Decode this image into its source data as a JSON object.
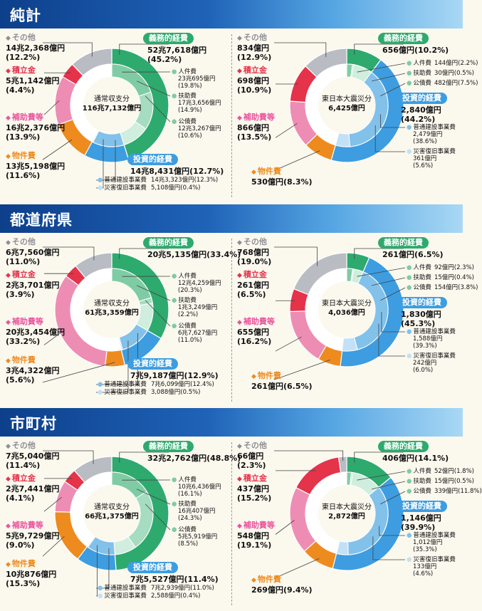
{
  "sections": [
    {
      "title": "純計",
      "panels": [
        {
          "center": [
            "通常収支分",
            "116兆7,132億円"
          ],
          "sono": "その他",
          "sono_v1": "14兆2,368億円",
          "sono_v2": "(12.2%)",
          "seki": "積立金",
          "seki_v1": "5兆1,142億円",
          "seki_v2": "(4.4%)",
          "hojo": "補助費等",
          "hojo_v1": "16兆2,376億円",
          "hojo_v2": "(13.9%)",
          "buk": "物件費",
          "buk_v1": "13兆5,198億円",
          "buk_v2": "(11.6%)",
          "gimu": "義務的経費",
          "gimu_v1": "52兆7,618億円",
          "gimu_v2": "(45.2%)",
          "jin": "人件費",
          "jin_v1": "23兆695億円",
          "jin_v2": "(19.8%)",
          "fuj": "扶助費",
          "fuj_v1": "17兆3,656億円",
          "fuj_v2": "(14.9%)",
          "kou": "公債費",
          "kou_v1": "12兆3,267億円",
          "kou_v2": "(10.6%)",
          "toshi": "投資的経費",
          "toshi_v": "14兆8,431億円(12.7%)",
          "futsu": "普通建設事業費",
          "futsu_v": "14兆3,323億円(12.3%)",
          "sai": "災害復旧事業費",
          "sai_v": "5,108億円(0.4%)"
        },
        {
          "center": [
            "東日本大震災分",
            "6,425億円"
          ],
          "sono": "その他",
          "sono_v1": "834億円",
          "sono_v2": "(12.9%)",
          "seki": "積立金",
          "seki_v1": "698億円",
          "seki_v2": "(10.9%)",
          "hojo": "補助費等",
          "hojo_v1": "866億円",
          "hojo_v2": "(13.5%)",
          "buk": "物件費",
          "buk_v1": "530億円(8.3%)",
          "buk_v2": "",
          "gimu": "義務的経費",
          "gimu_v1": "656億円(10.2%)",
          "gimu_v2": "",
          "jin": "人件費",
          "jin_v1": "144億円(2.2%)",
          "jin_v2": "",
          "fuj": "扶助費",
          "fuj_v1": "30億円(0.5%)",
          "fuj_v2": "",
          "kou": "公債費",
          "kou_v1": "482億円(7.5%)",
          "kou_v2": "",
          "toshi": "投資的経費",
          "toshi_v": "2,840億円",
          "toshi_v2": "(44.2%)",
          "futsu": "普通建設事業費",
          "futsu_v": "2,479億円",
          "futsu_v2": "(38.6%)",
          "sai": "災害復旧事業費",
          "sai_v": "361億円",
          "sai_v2": "(5.6%)"
        }
      ]
    },
    {
      "title": "都道府県",
      "panels": [
        {
          "center": [
            "通常収支分",
            "61兆3,359億円"
          ],
          "sono": "その他",
          "sono_v1": "6兆7,560億円",
          "sono_v2": "(11.0%)",
          "seki": "積立金",
          "seki_v1": "2兆3,701億円",
          "seki_v2": "(3.9%)",
          "hojo": "補助費等",
          "hojo_v1": "20兆3,454億円",
          "hojo_v2": "(33.2%)",
          "buk": "物件費",
          "buk_v1": "3兆4,322億円",
          "buk_v2": "(5.6%)",
          "gimu": "義務的経費",
          "gimu_v1": "20兆5,135億円(33.4%)",
          "gimu_v2": "",
          "jin": "人件費",
          "jin_v1": "12兆4,259億円",
          "jin_v2": "(20.3%)",
          "fuj": "扶助費",
          "fuj_v1": "1兆3,249億円",
          "fuj_v2": "(2.2%)",
          "kou": "公債費",
          "kou_v1": "6兆7,627億円",
          "kou_v2": "(11.0%)",
          "toshi": "投資的経費",
          "toshi_v": "7兆9,187億円(12.9%)",
          "futsu": "普通建設事業費",
          "futsu_v": "7兆6,099億円(12.4%)",
          "sai": "災害復旧事業費",
          "sai_v": "3,088億円(0.5%)"
        },
        {
          "center": [
            "東日本大震災分",
            "4,036億円"
          ],
          "sono": "その他",
          "sono_v1": "768億円",
          "sono_v2": "(19.0%)",
          "seki": "積立金",
          "seki_v1": "261億円",
          "seki_v2": "(6.5%)",
          "hojo": "補助費等",
          "hojo_v1": "655億円",
          "hojo_v2": "(16.2%)",
          "buk": "物件費",
          "buk_v1": "261億円(6.5%)",
          "buk_v2": "",
          "gimu": "義務的経費",
          "gimu_v1": "261億円(6.5%)",
          "gimu_v2": "",
          "jin": "人件費",
          "jin_v1": "92億円(2.3%)",
          "jin_v2": "",
          "fuj": "扶助費",
          "fuj_v1": "15億円(0.4%)",
          "fuj_v2": "",
          "kou": "公債費",
          "kou_v1": "154億円(3.8%)",
          "kou_v2": "",
          "toshi": "投資的経費",
          "toshi_v": "1,830億円",
          "toshi_v2": "(45.3%)",
          "futsu": "普通建設事業費",
          "futsu_v": "1,588億円",
          "futsu_v2": "(39.3%)",
          "sai": "災害復旧事業費",
          "sai_v": "242億円",
          "sai_v2": "(6.0%)"
        }
      ]
    },
    {
      "title": "市町村",
      "panels": [
        {
          "center": [
            "通常収支分",
            "66兆1,375億円"
          ],
          "sono": "その他",
          "sono_v1": "7兆5,040億円",
          "sono_v2": "(11.4%)",
          "seki": "積立金",
          "seki_v1": "2兆7,441億円",
          "seki_v2": "(4.1%)",
          "hojo": "補助費等",
          "hojo_v1": "5兆9,729億円",
          "hojo_v2": "(9.0%)",
          "buk": "物件費",
          "buk_v1": "10兆876億円",
          "buk_v2": "(15.3%)",
          "gimu": "義務的経費",
          "gimu_v1": "32兆2,762億円(48.8%)",
          "gimu_v2": "",
          "jin": "人件費",
          "jin_v1": "10兆6,436億円",
          "jin_v2": "(16.1%)",
          "fuj": "扶助費",
          "fuj_v1": "16兆407億円",
          "fuj_v2": "(24.3%)",
          "kou": "公債費",
          "kou_v1": "5兆5,919億円",
          "kou_v2": "(8.5%)",
          "toshi": "投資的経費",
          "toshi_v": "7兆5,527億円(11.4%)",
          "futsu": "普通建設事業費",
          "futsu_v": "7兆2,939億円(11.0%)",
          "sai": "災害復旧事業費",
          "sai_v": "2,588億円(0.4%)"
        },
        {
          "center": [
            "東日本大震災分",
            "2,872億円"
          ],
          "sono": "その他",
          "sono_v1": "66億円",
          "sono_v2": "(2.3%)",
          "seki": "積立金",
          "seki_v1": "437億円",
          "seki_v2": "(15.2%)",
          "hojo": "補助費等",
          "hojo_v1": "548億円",
          "hojo_v2": "(19.1%)",
          "buk": "物件費",
          "buk_v1": "269億円(9.4%)",
          "buk_v2": "",
          "gimu": "義務的経費",
          "gimu_v1": "406億円(14.1%)",
          "gimu_v2": "",
          "jin": "人件費",
          "jin_v1": "52億円(1.8%)",
          "jin_v2": "",
          "fuj": "扶助費",
          "fuj_v1": "15億円(0.5%)",
          "fuj_v2": "",
          "kou": "公債費",
          "kou_v1": "339億円(11.8%)",
          "kou_v2": "",
          "toshi": "投資的経費",
          "toshi_v": "1,146億円",
          "toshi_v2": "(39.9%)",
          "futsu": "普通建設事業費",
          "futsu_v": "1,012億円",
          "futsu_v2": "(35.3%)",
          "sai": "災害復旧事業費",
          "sai_v": "133億円",
          "sai_v2": "(4.6%)"
        }
      ]
    }
  ],
  "colors": {
    "gimu": "#2eaa6e",
    "jin": "#7fcca4",
    "fuj": "#a6dcbf",
    "kou": "#cfeedd",
    "toshi": "#3d9de0",
    "futsu": "#82c1ea",
    "sai": "#c3e1f6",
    "buk": "#ee8b1e",
    "hojo": "#ee8db3",
    "seki": "#e5334a",
    "sono": "#b9bcc2",
    "line": "#444444"
  },
  "chart_data": [
    {
      "type": "pie",
      "title": "純計 通常収支分 116兆7,132億円",
      "unit": "%",
      "outer": {
        "categories": [
          "義務的経費",
          "投資的経費",
          "物件費",
          "補助費等",
          "積立金",
          "その他"
        ],
        "values": [
          45.2,
          12.7,
          11.6,
          13.9,
          4.4,
          12.2
        ]
      },
      "inner": {
        "categories": [
          "人件費",
          "扶助費",
          "公債費",
          "普通建設事業費",
          "災害復旧事業費"
        ],
        "values": [
          19.8,
          14.9,
          10.6,
          12.3,
          0.4
        ]
      }
    },
    {
      "type": "pie",
      "title": "純計 東日本大震災分 6,425億円",
      "unit": "%",
      "outer": {
        "categories": [
          "義務的経費",
          "投資的経費",
          "物件費",
          "補助費等",
          "積立金",
          "その他"
        ],
        "values": [
          10.2,
          44.2,
          8.3,
          13.5,
          10.9,
          12.9
        ]
      },
      "inner": {
        "categories": [
          "人件費",
          "扶助費",
          "公債費",
          "普通建設事業費",
          "災害復旧事業費"
        ],
        "values": [
          2.2,
          0.5,
          7.5,
          38.6,
          5.6
        ]
      }
    },
    {
      "type": "pie",
      "title": "都道府県 通常収支分 61兆3,359億円",
      "unit": "%",
      "outer": {
        "categories": [
          "義務的経費",
          "投資的経費",
          "物件費",
          "補助費等",
          "積立金",
          "その他"
        ],
        "values": [
          33.4,
          12.9,
          5.6,
          33.2,
          3.9,
          11.0
        ]
      },
      "inner": {
        "categories": [
          "人件費",
          "扶助費",
          "公債費",
          "普通建設事業費",
          "災害復旧事業費"
        ],
        "values": [
          20.3,
          2.2,
          11.0,
          12.4,
          0.5
        ]
      }
    },
    {
      "type": "pie",
      "title": "都道府県 東日本大震災分 4,036億円",
      "unit": "%",
      "outer": {
        "categories": [
          "義務的経費",
          "投資的経費",
          "物件費",
          "補助費等",
          "積立金",
          "その他"
        ],
        "values": [
          6.5,
          45.3,
          6.5,
          16.2,
          6.5,
          19.0
        ]
      },
      "inner": {
        "categories": [
          "人件費",
          "扶助費",
          "公債費",
          "普通建設事業費",
          "災害復旧事業費"
        ],
        "values": [
          2.3,
          0.4,
          3.8,
          39.3,
          6.0
        ]
      }
    },
    {
      "type": "pie",
      "title": "市町村 通常収支分 66兆1,375億円",
      "unit": "%",
      "outer": {
        "categories": [
          "義務的経費",
          "投資的経費",
          "物件費",
          "補助費等",
          "積立金",
          "その他"
        ],
        "values": [
          48.8,
          11.4,
          15.3,
          9.0,
          4.1,
          11.4
        ]
      },
      "inner": {
        "categories": [
          "人件費",
          "扶助費",
          "公債費",
          "普通建設事業費",
          "災害復旧事業費"
        ],
        "values": [
          16.1,
          24.3,
          8.5,
          11.0,
          0.4
        ]
      }
    },
    {
      "type": "pie",
      "title": "市町村 東日本大震災分 2,872億円",
      "unit": "%",
      "outer": {
        "categories": [
          "義務的経費",
          "投資的経費",
          "物件費",
          "補助費等",
          "積立金",
          "その他"
        ],
        "values": [
          14.1,
          39.9,
          9.4,
          19.1,
          15.2,
          2.3
        ]
      },
      "inner": {
        "categories": [
          "人件費",
          "扶助費",
          "公債費",
          "普通建設事業費",
          "災害復旧事業費"
        ],
        "values": [
          1.8,
          0.5,
          11.8,
          35.3,
          4.6
        ]
      }
    }
  ]
}
